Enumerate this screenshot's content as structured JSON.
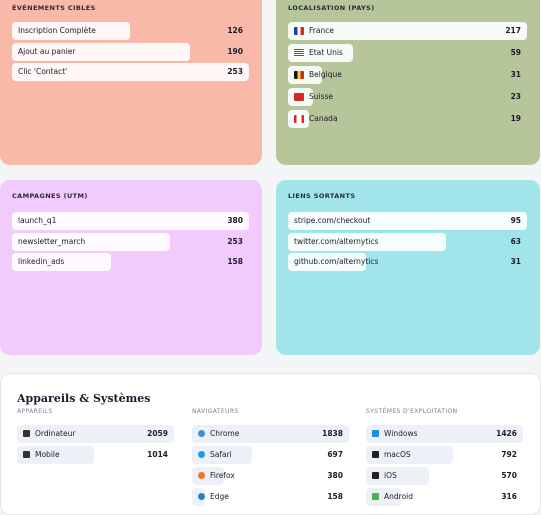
{
  "panels": [
    {
      "title": "ÉVÉNEMENTS CIBLES",
      "rows": [
        {
          "label": "Inscription Complète",
          "value": 126
        },
        {
          "label": "Ajout au panier",
          "value": 190
        },
        {
          "label": "Clic 'Contact'",
          "value": 253
        }
      ]
    },
    {
      "title": "LOCALISATION (PAYS)",
      "rows": [
        {
          "label": "France",
          "value": 217
        },
        {
          "label": "Etat Unis",
          "value": 59
        },
        {
          "label": "Belgique",
          "value": 31
        },
        {
          "label": "Suisse",
          "value": 23
        },
        {
          "label": "Canada",
          "value": 19
        }
      ]
    },
    {
      "title": "CAMPAGNES (UTM)",
      "rows": [
        {
          "label": "launch_q1",
          "value": 380
        },
        {
          "label": "newsletter_march",
          "value": 253
        },
        {
          "label": "linkedin_ads",
          "value": 158
        }
      ]
    },
    {
      "title": "LIENS SORTANTS",
      "rows": [
        {
          "label": "stripe.com/checkout",
          "value": 95
        },
        {
          "label": "twitter.com/alternytics",
          "value": 63
        },
        {
          "label": "github.com/alternytics",
          "value": 31
        }
      ]
    }
  ],
  "devices": {
    "title": "Appareils & Systèmes",
    "columns": [
      {
        "title": "APPAREILS",
        "rows": [
          {
            "label": "Ordinateur",
            "value": 2059
          },
          {
            "label": "Mobile",
            "value": 1014
          }
        ]
      },
      {
        "title": "NAVIGATEURS",
        "rows": [
          {
            "label": "Chrome",
            "value": 1838
          },
          {
            "label": "Safari",
            "value": 697
          },
          {
            "label": "Firefox",
            "value": 380
          },
          {
            "label": "Edge",
            "value": 158
          }
        ]
      },
      {
        "title": "SYSTÈMES D'EXPLOITATION",
        "rows": [
          {
            "label": "Windows",
            "value": 1426
          },
          {
            "label": "macOS",
            "value": 792
          },
          {
            "label": "iOS",
            "value": 570
          },
          {
            "label": "Android",
            "value": 316
          }
        ]
      }
    ]
  }
}
